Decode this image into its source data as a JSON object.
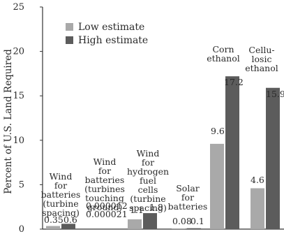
{
  "chart_data": {
    "type": "bar",
    "ylabel": "Percent of U.S. Land Required",
    "ylim": [
      0,
      25
    ],
    "yticks": [
      "0",
      "5",
      "10",
      "15",
      "20",
      "25"
    ],
    "grid": false,
    "legend_position": "top-left",
    "categories": [
      [
        "Wind",
        "for",
        "batteries",
        "(turbine",
        "spacing)"
      ],
      [
        "Wind",
        "for",
        "batteries",
        "(turbines",
        "touching",
        "ground)"
      ],
      [
        "Wind",
        "for",
        "hydrogen",
        "fuel",
        "cells",
        "(turbine",
        "spacing)"
      ],
      [
        "Solar",
        "for",
        "batteries"
      ],
      [
        "Corn",
        "ethanol"
      ],
      [
        "Cellu-",
        "losic",
        "ethanol"
      ]
    ],
    "series": [
      {
        "name": "Low estimate",
        "color": "#a9a9a9",
        "values": [
          0.35,
          1.2e-05,
          1.1,
          0.08,
          9.6,
          4.6
        ],
        "labels": [
          "0.35",
          "0.000012",
          "1.1",
          "0.08",
          "9.6",
          "4.6"
        ]
      },
      {
        "name": "High estimate",
        "color": "#5c5c5c",
        "values": [
          0.6,
          2.1e-05,
          1.8,
          0.1,
          17.2,
          15.9
        ],
        "labels": [
          "0.6",
          "0.000021",
          "1.8",
          "0.1",
          "17.2",
          "15.9"
        ]
      }
    ]
  }
}
